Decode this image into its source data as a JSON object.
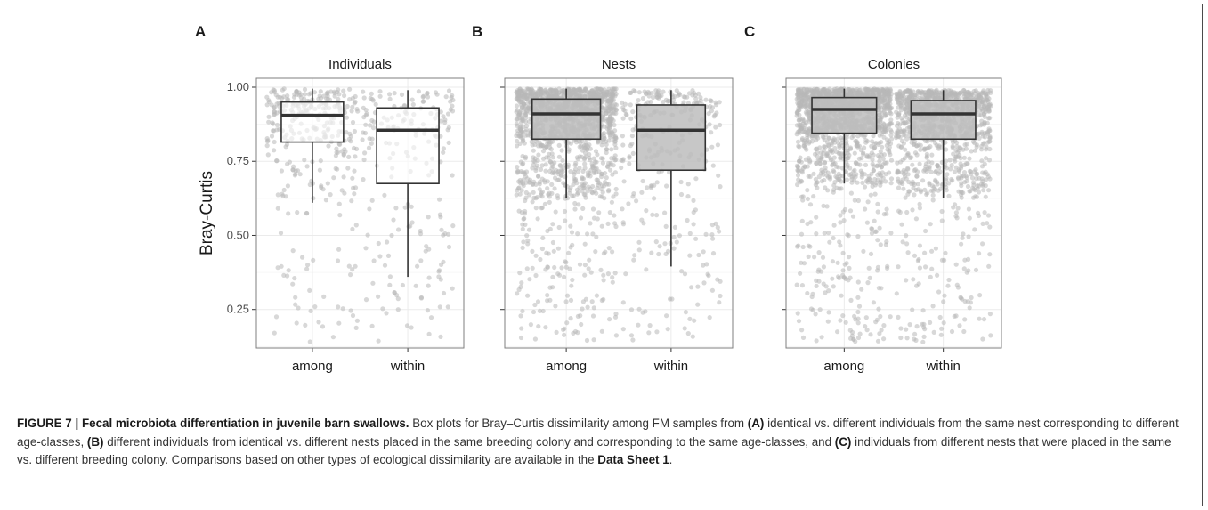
{
  "figure": {
    "ylabel": "Bray-Curtis",
    "yticks": [
      "1.00",
      "0.75",
      "0.50",
      "0.25"
    ],
    "colors": {
      "jitter": "#b8b8b8",
      "box_fill_A": "#ffffff",
      "box_fill_BC": "#bdbdbd",
      "box_line": "#333333",
      "grid": "#ebebeb"
    }
  },
  "chart_data": [
    {
      "type": "box",
      "panel_letter": "A",
      "title": "Individuals",
      "categories": [
        "among",
        "within"
      ],
      "ylim": [
        0.12,
        1.03
      ],
      "boxes": [
        {
          "category": "among",
          "whisker_low": 0.61,
          "q1": 0.815,
          "median": 0.905,
          "q3": 0.95,
          "whisker_high": 0.995,
          "jitter_n": 330
        },
        {
          "category": "within",
          "whisker_low": 0.36,
          "q1": 0.675,
          "median": 0.855,
          "q3": 0.93,
          "whisker_high": 0.99,
          "jitter_n": 200
        }
      ]
    },
    {
      "type": "box",
      "panel_letter": "B",
      "title": "Nests",
      "categories": [
        "among",
        "within"
      ],
      "ylim": [
        0.12,
        1.03
      ],
      "boxes": [
        {
          "category": "among",
          "whisker_low": 0.625,
          "q1": 0.825,
          "median": 0.91,
          "q3": 0.96,
          "whisker_high": 0.995,
          "jitter_n": 1400
        },
        {
          "category": "within",
          "whisker_low": 0.395,
          "q1": 0.72,
          "median": 0.855,
          "q3": 0.94,
          "whisker_high": 0.99,
          "jitter_n": 300
        }
      ]
    },
    {
      "type": "box",
      "panel_letter": "C",
      "title": "Colonies",
      "categories": [
        "among",
        "within"
      ],
      "ylim": [
        0.12,
        1.03
      ],
      "boxes": [
        {
          "category": "among",
          "whisker_low": 0.675,
          "q1": 0.845,
          "median": 0.925,
          "q3": 0.965,
          "whisker_high": 0.995,
          "jitter_n": 1500
        },
        {
          "category": "within",
          "whisker_low": 0.625,
          "q1": 0.825,
          "median": 0.91,
          "q3": 0.955,
          "whisker_high": 0.99,
          "jitter_n": 1100
        }
      ]
    }
  ],
  "caption": {
    "lead": "FIGURE 7 | Fecal microbiota differentiation in juvenile barn swallows.",
    "t1": " Box plots for Bray–Curtis dissimilarity among FM samples from ",
    "m1": "(A)",
    "t2": " identical vs. different individuals from the same nest corresponding to different age-classes, ",
    "m2": "(B)",
    "t3": " different individuals from identical vs. different nests placed in the same breeding colony and corresponding to the same age-classes, and ",
    "m3": "(C)",
    "t4": " individuals from different nests that were placed in the same vs. different breeding colony. Comparisons based on other types of ecological dissimilarity are available in the ",
    "ref": "Data Sheet 1",
    "t5": "."
  }
}
